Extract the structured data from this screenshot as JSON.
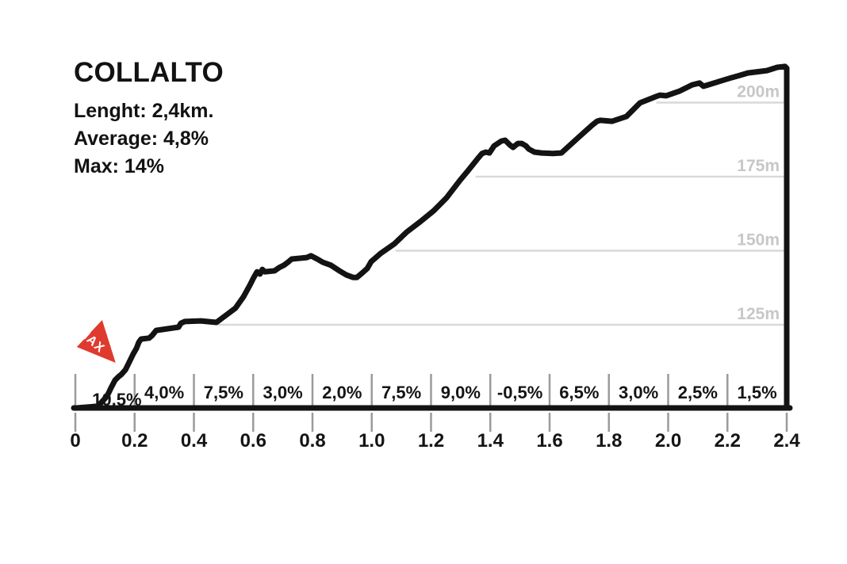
{
  "header": {
    "title": "COLLALTO",
    "stats": [
      "Lenght: 2,4km.",
      "Average: 4,8%",
      "Max: 14%"
    ]
  },
  "chart_data": {
    "type": "line",
    "title": "COLLALTO",
    "stats": {
      "length": "2,4km",
      "average": "4,8%",
      "max": "14%"
    },
    "xlabel": "",
    "ylabel": "",
    "xlim": [
      0,
      2.4
    ],
    "tick_step_km": 0.2,
    "x_ticks": [
      "0",
      "0.2",
      "0.4",
      "0.6",
      "0.8",
      "1.0",
      "1.2",
      "1.4",
      "1.6",
      "1.8",
      "2.0",
      "2.2",
      "2.4"
    ],
    "gridlines": [
      {
        "label": "125m",
        "elevation": 125,
        "start_km": 0.48
      },
      {
        "label": "150m",
        "elevation": 150,
        "start_km": 1.08
      },
      {
        "label": "175m",
        "elevation": 175,
        "start_km": 1.35
      },
      {
        "label": "200m",
        "elevation": 200,
        "start_km": 1.96
      }
    ],
    "segments": {
      "km_width": 0.2,
      "labels": [
        "10,5%",
        "4,0%",
        "7,5%",
        "3,0%",
        "2,0%",
        "7,5%",
        "9,0%",
        "-0,5%",
        "6,5%",
        "3,0%",
        "2,5%",
        "1,5%"
      ]
    },
    "max_marker": {
      "label": "MAX",
      "km": 0.136,
      "color": "#e03a2e"
    },
    "colors": {
      "line": "#131313",
      "gridline": "#d9d9d9",
      "tick": "#9b9b9b",
      "elevation_label": "#c7c7c7",
      "text": "#141414",
      "max_red": "#e03a2e"
    },
    "profile": [
      [
        0,
        96.9
      ],
      [
        0.075,
        97.5
      ],
      [
        0.088,
        98.8
      ],
      [
        0.107,
        100.9
      ],
      [
        0.12,
        103.6
      ],
      [
        0.134,
        106.3
      ],
      [
        0.147,
        107.6
      ],
      [
        0.155,
        108.2
      ],
      [
        0.169,
        109.8
      ],
      [
        0.182,
        112.4
      ],
      [
        0.195,
        115.1
      ],
      [
        0.206,
        117
      ],
      [
        0.214,
        119.1
      ],
      [
        0.222,
        120.2
      ],
      [
        0.249,
        120.5
      ],
      [
        0.26,
        121.5
      ],
      [
        0.273,
        123.1
      ],
      [
        0.348,
        124.2
      ],
      [
        0.356,
        125.5
      ],
      [
        0.369,
        126.1
      ],
      [
        0.423,
        126.3
      ],
      [
        0.476,
        125.8
      ],
      [
        0.508,
        128.2
      ],
      [
        0.54,
        130.6
      ],
      [
        0.567,
        134.4
      ],
      [
        0.589,
        138.4
      ],
      [
        0.602,
        141
      ],
      [
        0.613,
        142.9
      ],
      [
        0.623,
        142.1
      ],
      [
        0.631,
        143.7
      ],
      [
        0.639,
        142.9
      ],
      [
        0.672,
        143.2
      ],
      [
        0.688,
        144.3
      ],
      [
        0.704,
        145.1
      ],
      [
        0.717,
        146.1
      ],
      [
        0.73,
        147.2
      ],
      [
        0.781,
        147.7
      ],
      [
        0.795,
        148.3
      ],
      [
        0.816,
        147.2
      ],
      [
        0.835,
        146.1
      ],
      [
        0.862,
        145.1
      ],
      [
        0.888,
        143.4
      ],
      [
        0.915,
        141.8
      ],
      [
        0.937,
        141
      ],
      [
        0.95,
        141
      ],
      [
        0.969,
        142.6
      ],
      [
        0.985,
        144
      ],
      [
        0.998,
        146.3
      ],
      [
        1.03,
        149.1
      ],
      [
        1.076,
        152.3
      ],
      [
        1.118,
        156.3
      ],
      [
        1.164,
        159.8
      ],
      [
        1.209,
        163.5
      ],
      [
        1.252,
        167.8
      ],
      [
        1.297,
        173.7
      ],
      [
        1.324,
        176.9
      ],
      [
        1.356,
        180.9
      ],
      [
        1.372,
        182.8
      ],
      [
        1.385,
        183.3
      ],
      [
        1.397,
        183
      ],
      [
        1.413,
        185.4
      ],
      [
        1.437,
        187
      ],
      [
        1.45,
        187.3
      ],
      [
        1.466,
        185.7
      ],
      [
        1.477,
        184.9
      ],
      [
        1.493,
        186.2
      ],
      [
        1.506,
        186.2
      ],
      [
        1.52,
        185.4
      ],
      [
        1.53,
        184.3
      ],
      [
        1.549,
        183.3
      ],
      [
        1.573,
        183
      ],
      [
        1.611,
        182.8
      ],
      [
        1.64,
        183
      ],
      [
        1.699,
        188.4
      ],
      [
        1.744,
        192.4
      ],
      [
        1.76,
        193.7
      ],
      [
        1.771,
        194
      ],
      [
        1.811,
        193.7
      ],
      [
        1.859,
        195.3
      ],
      [
        1.905,
        199.9
      ],
      [
        1.958,
        202
      ],
      [
        1.972,
        202.5
      ],
      [
        1.993,
        202.3
      ],
      [
        2.039,
        203.9
      ],
      [
        2.081,
        206
      ],
      [
        2.106,
        206.6
      ],
      [
        2.119,
        205.5
      ],
      [
        2.135,
        206
      ],
      [
        2.181,
        207.4
      ],
      [
        2.207,
        208.2
      ],
      [
        2.242,
        209.2
      ],
      [
        2.269,
        210
      ],
      [
        2.333,
        210.8
      ],
      [
        2.368,
        211.9
      ],
      [
        2.394,
        212.2
      ],
      [
        2.4,
        211.6
      ]
    ]
  }
}
